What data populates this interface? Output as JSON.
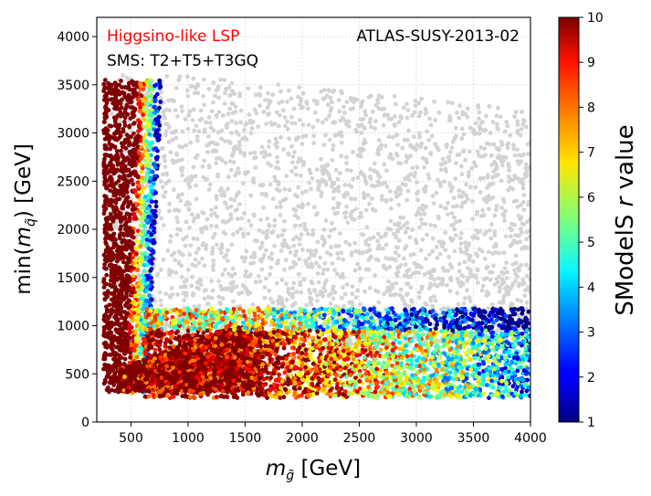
{
  "chart_data": {
    "type": "scatter",
    "x_axis": {
      "label_main": "m",
      "label_sub": "g̃",
      "label_unit": " [GeV]",
      "lim": [
        200,
        4000
      ],
      "ticks": [
        500,
        1000,
        1500,
        2000,
        2500,
        3000,
        3500,
        4000
      ],
      "tick_labels": [
        "500",
        "1000",
        "1500",
        "2000",
        "2500",
        "3000",
        "3500",
        "4000"
      ]
    },
    "y_axis": {
      "label_prefix": "min(",
      "label_main": "m",
      "label_sub": "q̃",
      "label_suffix": ") [GeV]",
      "lim": [
        0,
        4200
      ],
      "ticks": [
        0,
        500,
        1000,
        1500,
        2000,
        2500,
        3000,
        3500,
        4000
      ],
      "tick_labels": [
        "0",
        "500",
        "1000",
        "1500",
        "2000",
        "2500",
        "3000",
        "3500",
        "4000"
      ]
    },
    "colorbar": {
      "label_prefix": "SModelS ",
      "label_italic": "r",
      "label_suffix": " value",
      "lim": [
        1,
        10
      ],
      "ticks": [
        1,
        2,
        3,
        4,
        5,
        6,
        7,
        8,
        9,
        10
      ],
      "tick_labels": [
        "1",
        "2",
        "3",
        "4",
        "5",
        "6",
        "7",
        "8",
        "9",
        "10"
      ],
      "colormap": "jet"
    },
    "grid": true,
    "annotations": {
      "top_left": "Higgsino-like LSP",
      "top_left_color": "#ff0000",
      "top_right": "ATLAS-SUSY-2013-02",
      "second_line": "SMS: T2+T5+T3GQ"
    },
    "excluded_color_description": "r >= 10 shown dark red; unconstrained points shown light grey",
    "grey_color": "#d3d3d3",
    "regions": [
      {
        "name": "unconstrained",
        "color_value": null,
        "x_range": [
          300,
          4000
        ],
        "y_range": [
          800,
          3600
        ]
      },
      {
        "name": "low-gluino vertical band",
        "r_range": [
          1,
          10
        ],
        "x_range": [
          260,
          700
        ],
        "y_range": [
          280,
          3600
        ]
      },
      {
        "name": "low-squark horizontal band",
        "r_range": [
          1,
          10
        ],
        "x_range": [
          500,
          4000
        ],
        "y_range": [
          250,
          1200
        ]
      }
    ]
  }
}
